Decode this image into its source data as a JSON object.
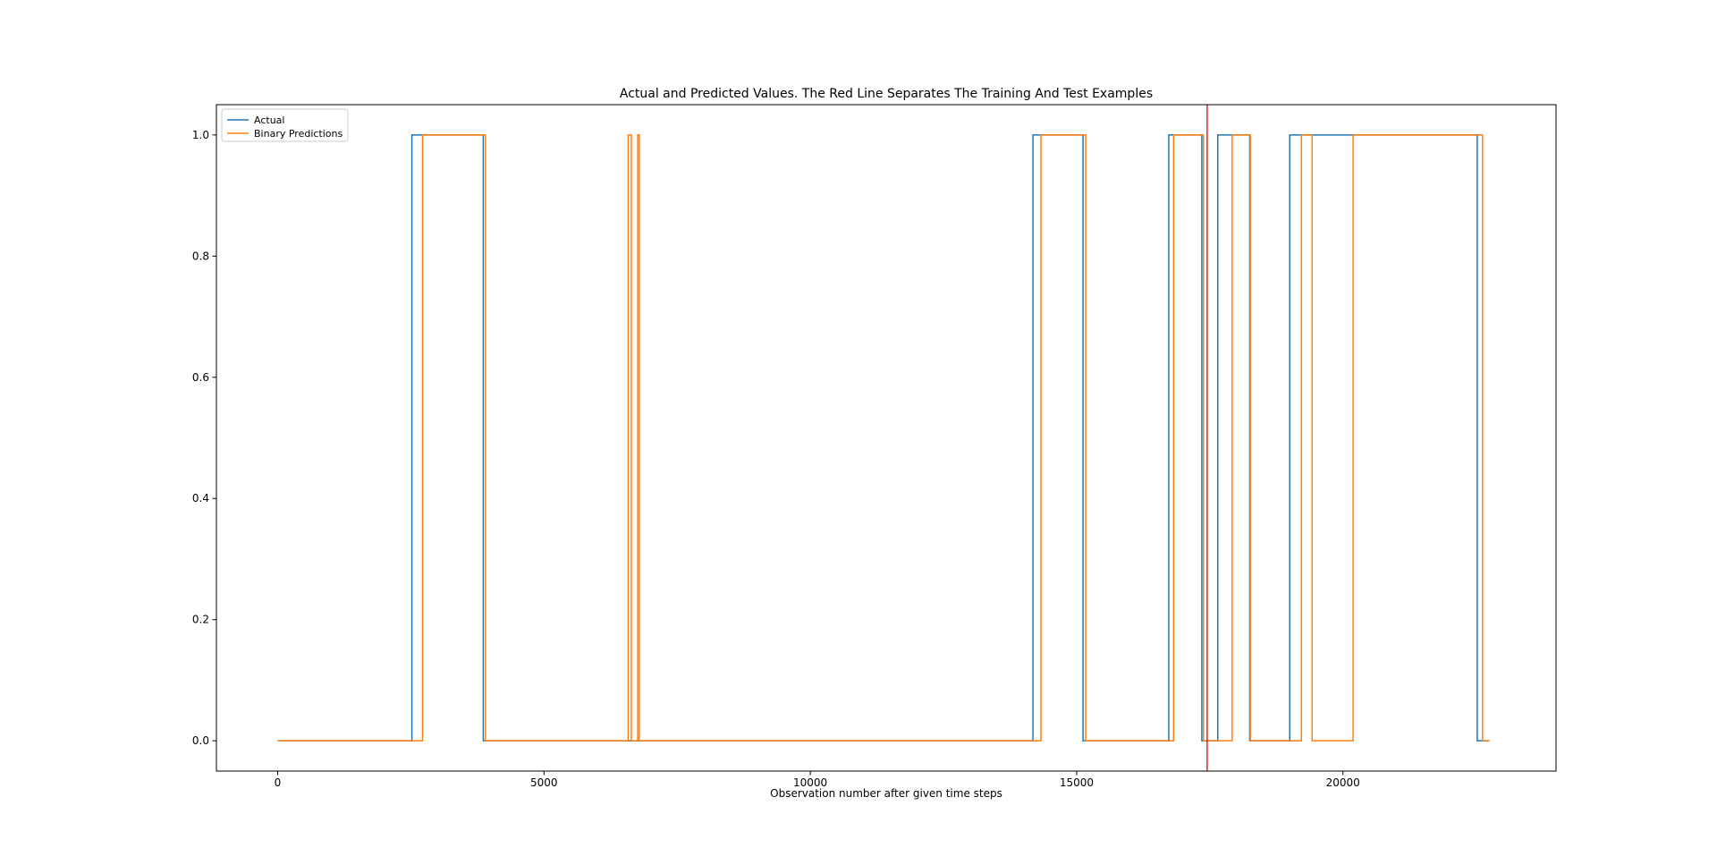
{
  "chart_data": {
    "type": "line",
    "title": "Actual and Predicted Values. The Red Line Separates The Training And Test Examples",
    "xlabel": "Observation number after given time steps",
    "ylabel": "",
    "xlim": [
      -1150,
      24000
    ],
    "ylim": [
      -0.05,
      1.05
    ],
    "x_ticks": [
      0,
      5000,
      10000,
      15000,
      20000
    ],
    "x_tick_labels": [
      "0",
      "5000",
      "10000",
      "15000",
      "20000"
    ],
    "y_ticks": [
      0.0,
      0.2,
      0.4,
      0.6,
      0.8,
      1.0
    ],
    "y_tick_labels": [
      "0.0",
      "0.2",
      "0.4",
      "0.6",
      "0.8",
      "1.0"
    ],
    "grid": false,
    "legend_position": "upper left",
    "series": [
      {
        "name": "Actual",
        "color": "#1f77b4",
        "step_points": [
          [
            0,
            0
          ],
          [
            2520,
            0
          ],
          [
            2520,
            1
          ],
          [
            3860,
            1
          ],
          [
            3860,
            0
          ],
          [
            14180,
            0
          ],
          [
            14180,
            1
          ],
          [
            15120,
            1
          ],
          [
            15120,
            0
          ],
          [
            16730,
            0
          ],
          [
            16730,
            1
          ],
          [
            17350,
            1
          ],
          [
            17350,
            0
          ],
          [
            17650,
            0
          ],
          [
            17650,
            1
          ],
          [
            18250,
            1
          ],
          [
            18250,
            0
          ],
          [
            19000,
            0
          ],
          [
            19000,
            1
          ],
          [
            22520,
            1
          ],
          [
            22520,
            0
          ],
          [
            22750,
            0
          ]
        ]
      },
      {
        "name": "Binary Predictions",
        "color": "#ff7f0e",
        "step_points": [
          [
            0,
            0
          ],
          [
            2720,
            0
          ],
          [
            2720,
            1
          ],
          [
            3900,
            1
          ],
          [
            3900,
            0
          ],
          [
            6580,
            0
          ],
          [
            6580,
            1
          ],
          [
            6640,
            1
          ],
          [
            6640,
            0
          ],
          [
            6760,
            0
          ],
          [
            6760,
            1
          ],
          [
            6790,
            1
          ],
          [
            6790,
            0
          ],
          [
            14330,
            0
          ],
          [
            14330,
            1
          ],
          [
            15170,
            1
          ],
          [
            15170,
            0
          ],
          [
            16820,
            0
          ],
          [
            16820,
            1
          ],
          [
            17380,
            1
          ],
          [
            17380,
            0
          ],
          [
            17920,
            0
          ],
          [
            17920,
            1
          ],
          [
            18260,
            1
          ],
          [
            18260,
            0
          ],
          [
            19220,
            0
          ],
          [
            19220,
            1
          ],
          [
            19420,
            1
          ],
          [
            19420,
            0
          ],
          [
            20190,
            0
          ],
          [
            20190,
            1
          ],
          [
            22620,
            1
          ],
          [
            22620,
            0
          ],
          [
            22750,
            0
          ]
        ]
      }
    ],
    "vertical_line": {
      "x": 17450,
      "color": "#d62728"
    }
  }
}
